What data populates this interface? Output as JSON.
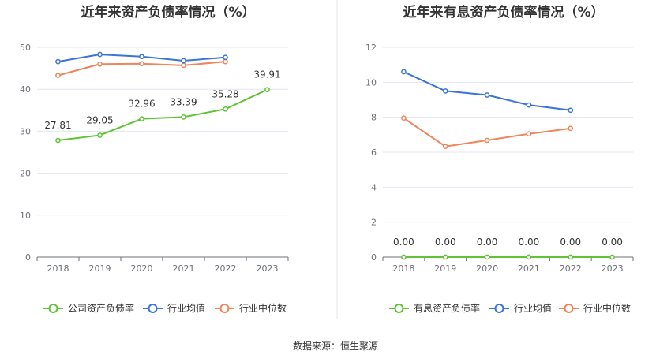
{
  "source_note": "数据来源：恒生聚源",
  "chart_data": [
    {
      "type": "line",
      "title": "近年来资产负债率情况（%）",
      "categories": [
        "2018",
        "2019",
        "2020",
        "2021",
        "2022",
        "2023"
      ],
      "ylim": [
        0,
        50
      ],
      "yticks": [
        "0",
        "10",
        "20",
        "30",
        "40",
        "50"
      ],
      "grid": true,
      "legend_position": "bottom",
      "series": [
        {
          "name": "公司资产负债率",
          "color": "#5fc435",
          "values": [
            27.81,
            29.05,
            32.96,
            33.39,
            35.28,
            39.91
          ],
          "labels": [
            "27.81",
            "29.05",
            "32.96",
            "33.39",
            "35.28",
            "39.91"
          ]
        },
        {
          "name": "行业均值",
          "color": "#3a74d6",
          "values": [
            46.6,
            48.3,
            47.8,
            46.8,
            47.6,
            null
          ]
        },
        {
          "name": "行业中位数",
          "color": "#f0845a",
          "values": [
            43.3,
            46.0,
            46.1,
            45.7,
            46.6,
            null
          ]
        }
      ]
    },
    {
      "type": "line",
      "title": "近年来有息资产负债率情况（%）",
      "categories": [
        "2018",
        "2019",
        "2020",
        "2021",
        "2022",
        "2023"
      ],
      "ylim": [
        0,
        12
      ],
      "yticks": [
        "0",
        "2",
        "4",
        "6",
        "8",
        "10",
        "12"
      ],
      "grid": true,
      "legend_position": "bottom",
      "series": [
        {
          "name": "有息资产负债率",
          "color": "#5fc435",
          "values": [
            0,
            0,
            0,
            0,
            0,
            0
          ],
          "labels": [
            "0.00",
            "0.00",
            "0.00",
            "0.00",
            "0.00",
            "0.00"
          ]
        },
        {
          "name": "行业均值",
          "color": "#3a74d6",
          "values": [
            10.6,
            9.5,
            9.27,
            8.7,
            8.4,
            null
          ]
        },
        {
          "name": "行业中位数",
          "color": "#f0845a",
          "values": [
            7.95,
            6.33,
            6.68,
            7.05,
            7.36,
            null
          ]
        }
      ]
    }
  ]
}
